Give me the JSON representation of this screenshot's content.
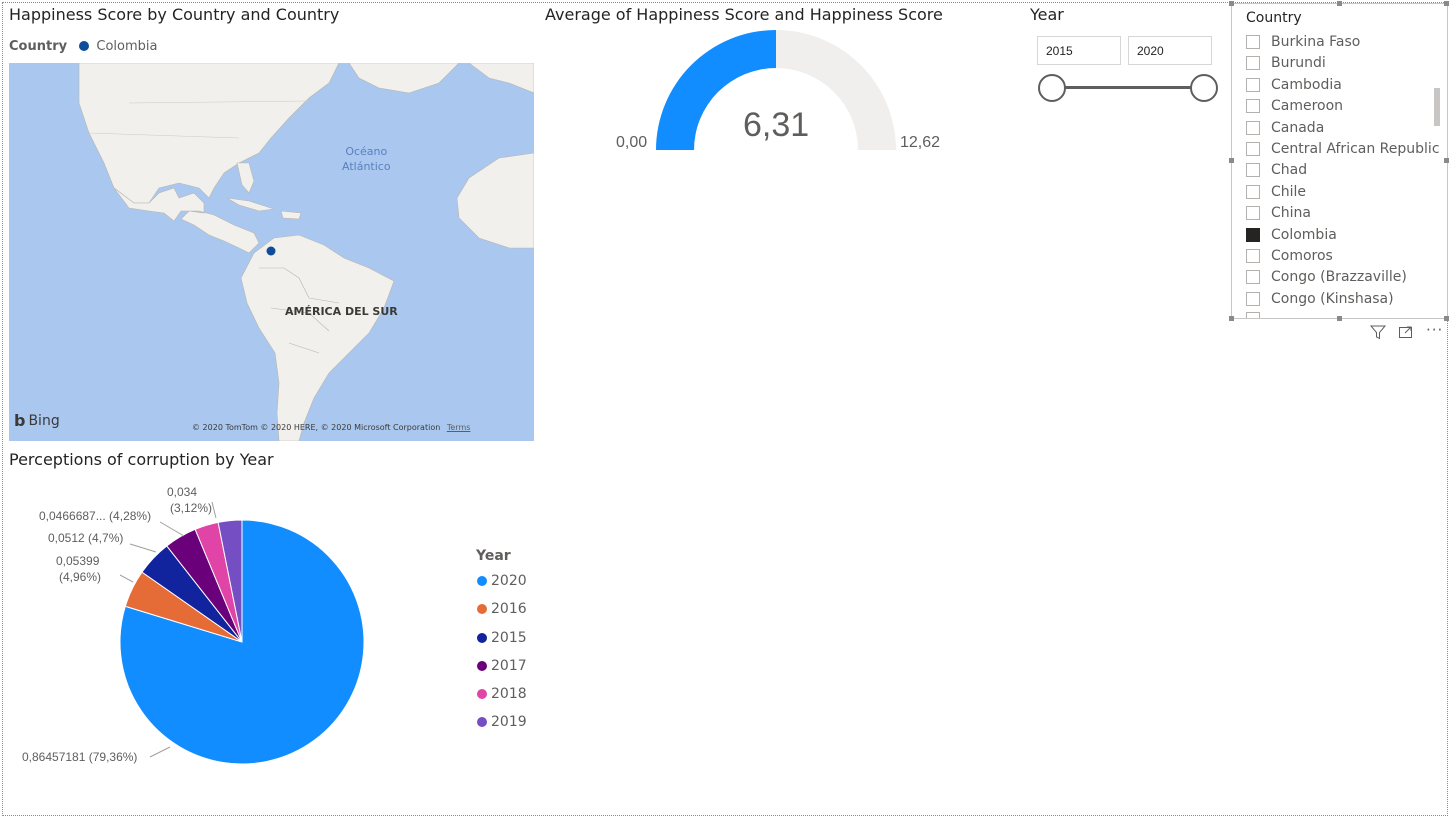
{
  "map": {
    "title": "Happiness Score by Country and Country",
    "legend_title": "Country",
    "legend_item": "Colombia",
    "legend_color": "#0f4c9a",
    "ocean_label_1": "Océano",
    "ocean_label_2": "Atlántico",
    "continent_label": "AMÉRICA DEL SUR",
    "bing_label": "Bing",
    "copyright": "© 2020 TomTom © 2020 HERE, © 2020 Microsoft Corporation",
    "terms": "Terms"
  },
  "gauge": {
    "title": "Average of Happiness Score and Happiness Score",
    "value_label": "6,31",
    "min_label": "0,00",
    "max_label": "12,62",
    "value": 6.31,
    "min": 0,
    "max": 12.62,
    "fill_color": "#118dff",
    "track_color": "#f0efee"
  },
  "year_slicer": {
    "title": "Year",
    "start": "2015",
    "end": "2020"
  },
  "country_slicer": {
    "header": "Country",
    "items": [
      {
        "label": "Burkina Faso",
        "checked": false
      },
      {
        "label": "Burundi",
        "checked": false
      },
      {
        "label": "Cambodia",
        "checked": false
      },
      {
        "label": "Cameroon",
        "checked": false
      },
      {
        "label": "Canada",
        "checked": false
      },
      {
        "label": "Central African Republic",
        "checked": false
      },
      {
        "label": "Chad",
        "checked": false
      },
      {
        "label": "Chile",
        "checked": false
      },
      {
        "label": "China",
        "checked": false
      },
      {
        "label": "Colombia",
        "checked": true
      },
      {
        "label": "Comoros",
        "checked": false
      },
      {
        "label": "Congo (Brazzaville)",
        "checked": false
      },
      {
        "label": "Congo (Kinshasa)",
        "checked": false
      }
    ]
  },
  "visual_header_icons": [
    "filter-icon",
    "focus-mode-icon",
    "more-options-icon"
  ],
  "pie": {
    "title": "Perceptions of corruption by Year",
    "legend_title": "Year"
  },
  "chart_data": {
    "type": "pie",
    "title": "Perceptions of corruption by Year",
    "legend_title": "Year",
    "legend_position": "right",
    "slices": [
      {
        "name": "2020",
        "value": 0.86457181,
        "percent": 79.36,
        "label": "0,86457181 (79,36%)",
        "color": "#118dff"
      },
      {
        "name": "2016",
        "value": 0.05399,
        "percent": 4.96,
        "label": "0,05399 (4,96%)",
        "color": "#e66c37"
      },
      {
        "name": "2015",
        "value": 0.0512,
        "percent": 4.7,
        "label": "0,0512 (4,7%)",
        "color": "#12239e"
      },
      {
        "name": "2017",
        "value": 0.0466687,
        "percent": 4.28,
        "label": "0,0466687... (4,28%)",
        "color": "#6b007b"
      },
      {
        "name": "2018",
        "value": 0.034,
        "percent": 3.12,
        "label": "0,034 (3,12%)",
        "color": "#e044a7"
      },
      {
        "name": "2019",
        "value": 0.034,
        "percent": 3.12,
        "label": "",
        "color": "#744ec2"
      }
    ]
  }
}
